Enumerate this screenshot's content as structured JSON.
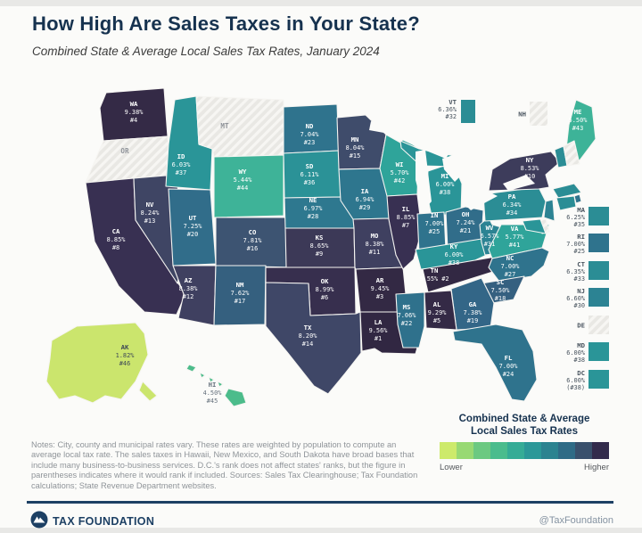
{
  "header": {
    "title": "How High Are Sales Taxes in Your State?",
    "subtitle": "Combined State & Average Local Sales Tax Rates, January 2024"
  },
  "chart_data": {
    "type": "choropleth",
    "title": "How High Are Sales Taxes in Your State?",
    "subtitle": "Combined State & Average Local Sales Tax Rates, January 2024",
    "unit": "percent combined state + average local sales tax rate",
    "no_tax_states": [
      "OR",
      "MT",
      "NH",
      "DE"
    ],
    "states": [
      {
        "id": "WA",
        "v": 9.38,
        "rate": "9.38%",
        "rank": "#4",
        "fill": "#342a46",
        "label": "map"
      },
      {
        "id": "OR",
        "v": 0,
        "rate": "",
        "rank": "",
        "fill": "hatch",
        "label": "abbr"
      },
      {
        "id": "CA",
        "v": 8.85,
        "rate": "8.85%",
        "rank": "#8",
        "fill": "#383052",
        "label": "map"
      },
      {
        "id": "NV",
        "v": 8.24,
        "rate": "8.24%",
        "rank": "#13",
        "fill": "#3f4564",
        "label": "map"
      },
      {
        "id": "ID",
        "v": 6.03,
        "rate": "6.03%",
        "rank": "#37",
        "fill": "#2a9598",
        "label": "map"
      },
      {
        "id": "MT",
        "v": 0,
        "rate": "",
        "rank": "",
        "fill": "hatch",
        "label": "abbr"
      },
      {
        "id": "WY",
        "v": 5.44,
        "rate": "5.44%",
        "rank": "#44",
        "fill": "#3eb398",
        "label": "map"
      },
      {
        "id": "UT",
        "v": 7.25,
        "rate": "7.25%",
        "rank": "#20",
        "fill": "#316d8a",
        "label": "map"
      },
      {
        "id": "CO",
        "v": 7.81,
        "rate": "7.81%",
        "rank": "#16",
        "fill": "#3d5472",
        "label": "map"
      },
      {
        "id": "AZ",
        "v": 8.38,
        "rate": "8.38%",
        "rank": "#12",
        "fill": "#3f4060",
        "label": "map"
      },
      {
        "id": "NM",
        "v": 7.62,
        "rate": "7.62%",
        "rank": "#17",
        "fill": "#35607f",
        "label": "map"
      },
      {
        "id": "ND",
        "v": 7.04,
        "rate": "7.04%",
        "rank": "#23",
        "fill": "#2f738d",
        "label": "map"
      },
      {
        "id": "SD",
        "v": 6.11,
        "rate": "6.11%",
        "rank": "#36",
        "fill": "#2b9297",
        "label": "map"
      },
      {
        "id": "NE",
        "v": 6.97,
        "rate": "6.97%",
        "rank": "#28",
        "fill": "#2e788f",
        "label": "map"
      },
      {
        "id": "KS",
        "v": 8.65,
        "rate": "8.65%",
        "rank": "#9",
        "fill": "#3c3957",
        "label": "map"
      },
      {
        "id": "OK",
        "v": 8.99,
        "rate": "8.99%",
        "rank": "#6",
        "fill": "#372f4e",
        "label": "map"
      },
      {
        "id": "TX",
        "v": 8.2,
        "rate": "8.20%",
        "rank": "#14",
        "fill": "#3f4767",
        "label": "map"
      },
      {
        "id": "MN",
        "v": 8.04,
        "rate": "8.04%",
        "rank": "#15",
        "fill": "#3f4c6b",
        "label": "map"
      },
      {
        "id": "IA",
        "v": 6.94,
        "rate": "6.94%",
        "rank": "#29",
        "fill": "#2e768e",
        "label": "map"
      },
      {
        "id": "MO",
        "v": 8.38,
        "rate": "8.38%",
        "rank": "#11",
        "fill": "#3f4060",
        "label": "map"
      },
      {
        "id": "AR",
        "v": 9.45,
        "rate": "9.45%",
        "rank": "#3",
        "fill": "#332944",
        "label": "map"
      },
      {
        "id": "LA",
        "v": 9.56,
        "rate": "9.56%",
        "rank": "#1",
        "fill": "#312742",
        "label": "map"
      },
      {
        "id": "WI",
        "v": 5.7,
        "rate": "5.70%",
        "rank": "#42",
        "fill": "#2fa49a",
        "label": "map"
      },
      {
        "id": "IL",
        "v": 8.85,
        "rate": "8.85%",
        "rank": "#7",
        "fill": "#383052",
        "label": "map"
      },
      {
        "id": "MS",
        "v": 7.06,
        "rate": "7.06%",
        "rank": "#22",
        "fill": "#2f718c",
        "label": "map"
      },
      {
        "id": "MI",
        "v": 6.0,
        "rate": "6.00%",
        "rank": "#38",
        "fill": "#2a9598",
        "label": "map"
      },
      {
        "id": "IN",
        "v": 7.0,
        "rate": "7.00%",
        "rank": "#25",
        "fill": "#2f738d",
        "label": "map"
      },
      {
        "id": "OH",
        "v": 7.24,
        "rate": "7.24%",
        "rank": "#21",
        "fill": "#316d8a",
        "label": "map"
      },
      {
        "id": "KY",
        "v": 6.0,
        "rate": "6.00%",
        "rank": "#38",
        "fill": "#2a9598",
        "label": "map"
      },
      {
        "id": "TN",
        "v": 9.55,
        "rate": "9.55%",
        "rank": "#2",
        "fill": "#322843",
        "label": "map",
        "compact": true
      },
      {
        "id": "WV",
        "v": 6.57,
        "rate": "6.57%",
        "rank": "#31",
        "fill": "#2c8393",
        "label": "map"
      },
      {
        "id": "VA",
        "v": 5.77,
        "rate": "5.77%",
        "rank": "#41",
        "fill": "#2fa49a",
        "label": "map"
      },
      {
        "id": "NC",
        "v": 7.0,
        "rate": "7.00%",
        "rank": "#27",
        "fill": "#2f738d",
        "label": "map"
      },
      {
        "id": "SC",
        "v": 7.5,
        "rate": "7.50%",
        "rank": "#18",
        "fill": "#356080",
        "label": "map"
      },
      {
        "id": "GA",
        "v": 7.38,
        "rate": "7.38%",
        "rank": "#19",
        "fill": "#336687",
        "label": "map"
      },
      {
        "id": "AL",
        "v": 9.29,
        "rate": "9.29%",
        "rank": "#5",
        "fill": "#342a46",
        "label": "map"
      },
      {
        "id": "FL",
        "v": 7.0,
        "rate": "7.00%",
        "rank": "#24",
        "fill": "#2f738d",
        "label": "map"
      },
      {
        "id": "PA",
        "v": 6.34,
        "rate": "6.34%",
        "rank": "#34",
        "fill": "#2b8d95",
        "label": "map"
      },
      {
        "id": "NY",
        "v": 8.53,
        "rate": "8.53%",
        "rank": "#10",
        "fill": "#3d3c5b",
        "label": "map"
      },
      {
        "id": "ME",
        "v": 5.5,
        "rate": "5.50%",
        "rank": "#43",
        "fill": "#3db398",
        "label": "map"
      },
      {
        "id": "AK",
        "v": 1.82,
        "rate": "1.82%",
        "rank": "#46",
        "fill": "#cbe56d",
        "label": "map",
        "label_fill": "#3f4a56"
      },
      {
        "id": "HI",
        "v": 4.5,
        "rate": "4.50%",
        "rank": "#45",
        "fill": "#4cbc8b",
        "label": "map",
        "label_fill": "#67727e"
      },
      {
        "id": "VT",
        "v": 6.36,
        "rate": "6.36%",
        "rank": "#32",
        "fill": "#2b8d95",
        "label": "none"
      },
      {
        "id": "NH",
        "v": 0,
        "rate": "",
        "rank": "",
        "fill": "hatch",
        "label": "none"
      },
      {
        "id": "MA",
        "v": 6.25,
        "rate": "6.25%",
        "rank": "#35",
        "fill": "#2b8d95",
        "label": "none"
      },
      {
        "id": "RI",
        "v": 7.0,
        "rate": "7.00%",
        "rank": "#25",
        "fill": "#2f738d",
        "label": "none"
      },
      {
        "id": "CT",
        "v": 6.35,
        "rate": "6.35%",
        "rank": "#33",
        "fill": "#2b8d95",
        "label": "none"
      },
      {
        "id": "NJ",
        "v": 6.6,
        "rate": "6.60%",
        "rank": "#30",
        "fill": "#2c8393",
        "label": "none"
      },
      {
        "id": "DE",
        "v": 0,
        "rate": "",
        "rank": "",
        "fill": "hatch",
        "label": "none"
      },
      {
        "id": "MD",
        "v": 6.0,
        "rate": "6.00%",
        "rank": "#38",
        "fill": "#2a9598",
        "label": "none"
      }
    ],
    "callouts": [
      {
        "id": "VT",
        "rate": "6.36%",
        "rank": "#32",
        "fill": "#2b8d95"
      },
      {
        "id": "NH",
        "rate": "",
        "rank": "",
        "fill": "hatch",
        "single": true
      },
      {
        "id": "MA",
        "rate": "6.25%",
        "rank": "#35",
        "fill": "#2b8d95"
      },
      {
        "id": "RI",
        "rate": "7.00%",
        "rank": "#25",
        "fill": "#2f738d"
      },
      {
        "id": "CT",
        "rate": "6.35%",
        "rank": "#33",
        "fill": "#2b8d95"
      },
      {
        "id": "NJ",
        "rate": "6.60%",
        "rank": "#30",
        "fill": "#2c8393"
      },
      {
        "id": "DE",
        "rate": "",
        "rank": "",
        "fill": "hatch",
        "single": true
      },
      {
        "id": "MD",
        "rate": "6.00%",
        "rank": "#38",
        "fill": "#2a9598"
      },
      {
        "id": "DC",
        "rate": "6.00%",
        "rank": "(#38)",
        "fill": "#2a9598"
      }
    ]
  },
  "legend": {
    "title_line1": "Combined State & Average",
    "title_line2": "Local Sales Tax Rates",
    "lower": "Lower",
    "higher": "Higher",
    "colors": [
      "#cdea6b",
      "#98d973",
      "#6cc981",
      "#4abc8d",
      "#35ac96",
      "#2b9898",
      "#2c8390",
      "#2f6b86",
      "#39506c",
      "#332b4c"
    ]
  },
  "notes": {
    "text": "Notes: City, county and municipal rates vary. These rates are weighted by population to compute an average local tax rate. The sales taxes in Hawaii, New Mexico, and South Dakota have broad bases that include many business-to-business services. D.C.'s rank does not affect states' ranks, but the figure in parentheses indicates where it would rank if included.",
    "sources": "Sources: Sales Tax Clearinghouse; Tax Foundation calculations; State Revenue Department websites."
  },
  "footer": {
    "brand": "TAX FOUNDATION",
    "handle": "@TaxFoundation"
  },
  "colors": {
    "title_navy": "#16324f",
    "footer_navy": "#1d4064",
    "background": "#fbfbf9",
    "hatch_base": "#e9e8e4",
    "map_label_light": "#ffffff",
    "no_tax_label": "#90949a"
  }
}
